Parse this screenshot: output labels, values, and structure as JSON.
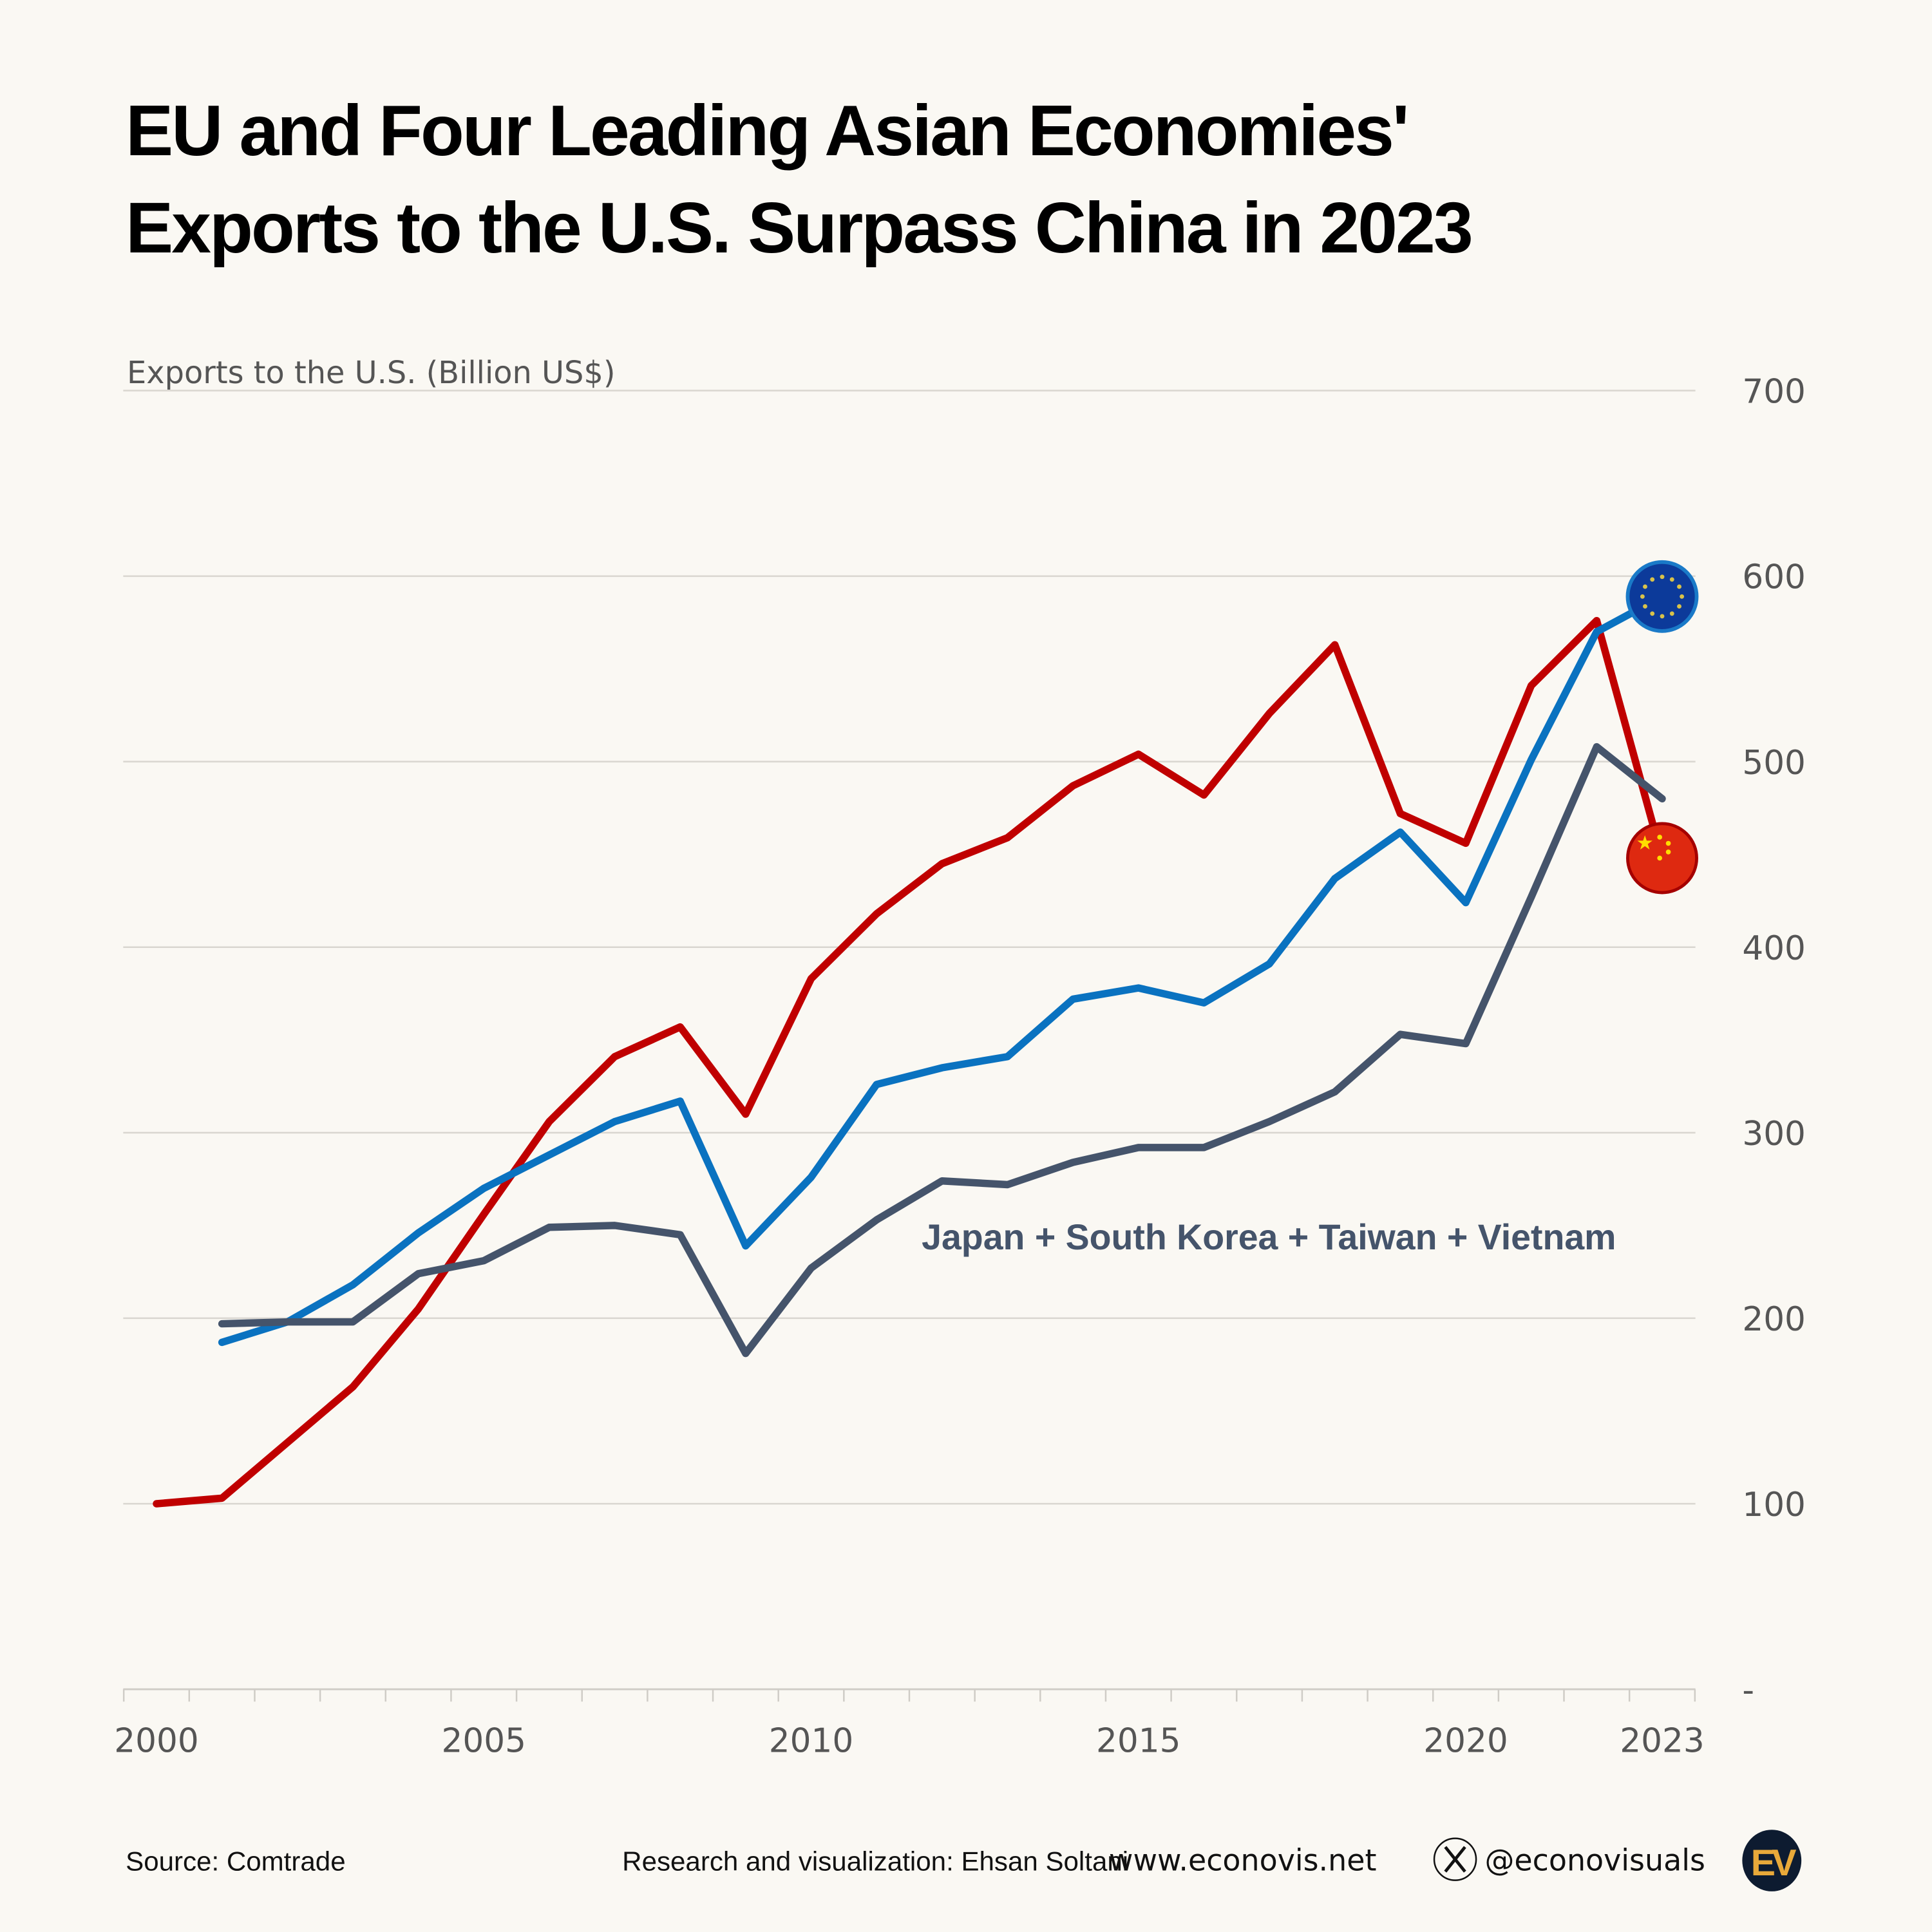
{
  "chart_data": {
    "type": "line",
    "title_lines": [
      "EU and Four Leading Asian Economies'",
      "Exports to the U.S. Surpass China in 2023"
    ],
    "ylabel": "Exports to the U.S. (Billion US$)",
    "xlabel": "",
    "ylim": [
      0,
      700
    ],
    "xlim": [
      2000,
      2023
    ],
    "y_ticks": [
      0,
      100,
      200,
      300,
      400,
      500,
      600,
      700
    ],
    "y_tick_labels": [
      "-",
      "100",
      "200",
      "300",
      "400",
      "500",
      "600",
      "700"
    ],
    "x_ticks": [
      2000,
      2005,
      2010,
      2015,
      2020,
      2023
    ],
    "x_tick_labels": [
      "2000",
      "2005",
      "2010",
      "2015",
      "2020",
      "2023"
    ],
    "grid": true,
    "y_axis_side": "right",
    "series": [
      {
        "key": "china",
        "color": "#c00000",
        "icon": "china-flag-icon",
        "x": [
          2000,
          2001,
          2002,
          2003,
          2004,
          2005,
          2006,
          2007,
          2008,
          2009,
          2010,
          2011,
          2012,
          2013,
          2014,
          2015,
          2016,
          2017,
          2018,
          2019,
          2020,
          2021,
          2022,
          2023
        ],
        "values": [
          100,
          103,
          133,
          163,
          205,
          256,
          306,
          341,
          357,
          310,
          383,
          418,
          445,
          459,
          487,
          504,
          482,
          526,
          563,
          472,
          456,
          541,
          576,
          448
        ]
      },
      {
        "key": "eu",
        "color": "#0a72c0",
        "icon": "eu-flag-icon",
        "x": [
          2001,
          2002,
          2003,
          2004,
          2005,
          2006,
          2007,
          2008,
          2009,
          2010,
          2011,
          2012,
          2013,
          2014,
          2015,
          2016,
          2017,
          2018,
          2019,
          2020,
          2021,
          2022,
          2023
        ],
        "values": [
          187,
          198,
          218,
          246,
          270,
          288,
          306,
          317,
          239,
          276,
          326,
          335,
          341,
          372,
          378,
          370,
          391,
          437,
          462,
          424,
          501,
          570,
          589
        ]
      },
      {
        "key": "asia4",
        "name": "Japan + South Korea + Taiwan + Vietnam",
        "color": "#45546b",
        "x": [
          2001,
          2002,
          2003,
          2004,
          2005,
          2006,
          2007,
          2008,
          2009,
          2010,
          2011,
          2012,
          2013,
          2014,
          2015,
          2016,
          2017,
          2018,
          2019,
          2020,
          2021,
          2022,
          2023
        ],
        "values": [
          197,
          198,
          198,
          224,
          231,
          249,
          250,
          245,
          181,
          227,
          253,
          274,
          272,
          284,
          292,
          292,
          306,
          322,
          353,
          348,
          427,
          508,
          480
        ]
      }
    ],
    "annotation": "Japan + South Korea + Taiwan + Vietnam"
  },
  "footer": {
    "source": "Source: Comtrade",
    "credit": "Research and visualization: Ehsan Soltani",
    "website": "www.econovis.net",
    "handle": "@econovisuals",
    "logo_text": "EV",
    "logo_bg": "#0d1b30",
    "logo_fg": "#e8a93a"
  }
}
